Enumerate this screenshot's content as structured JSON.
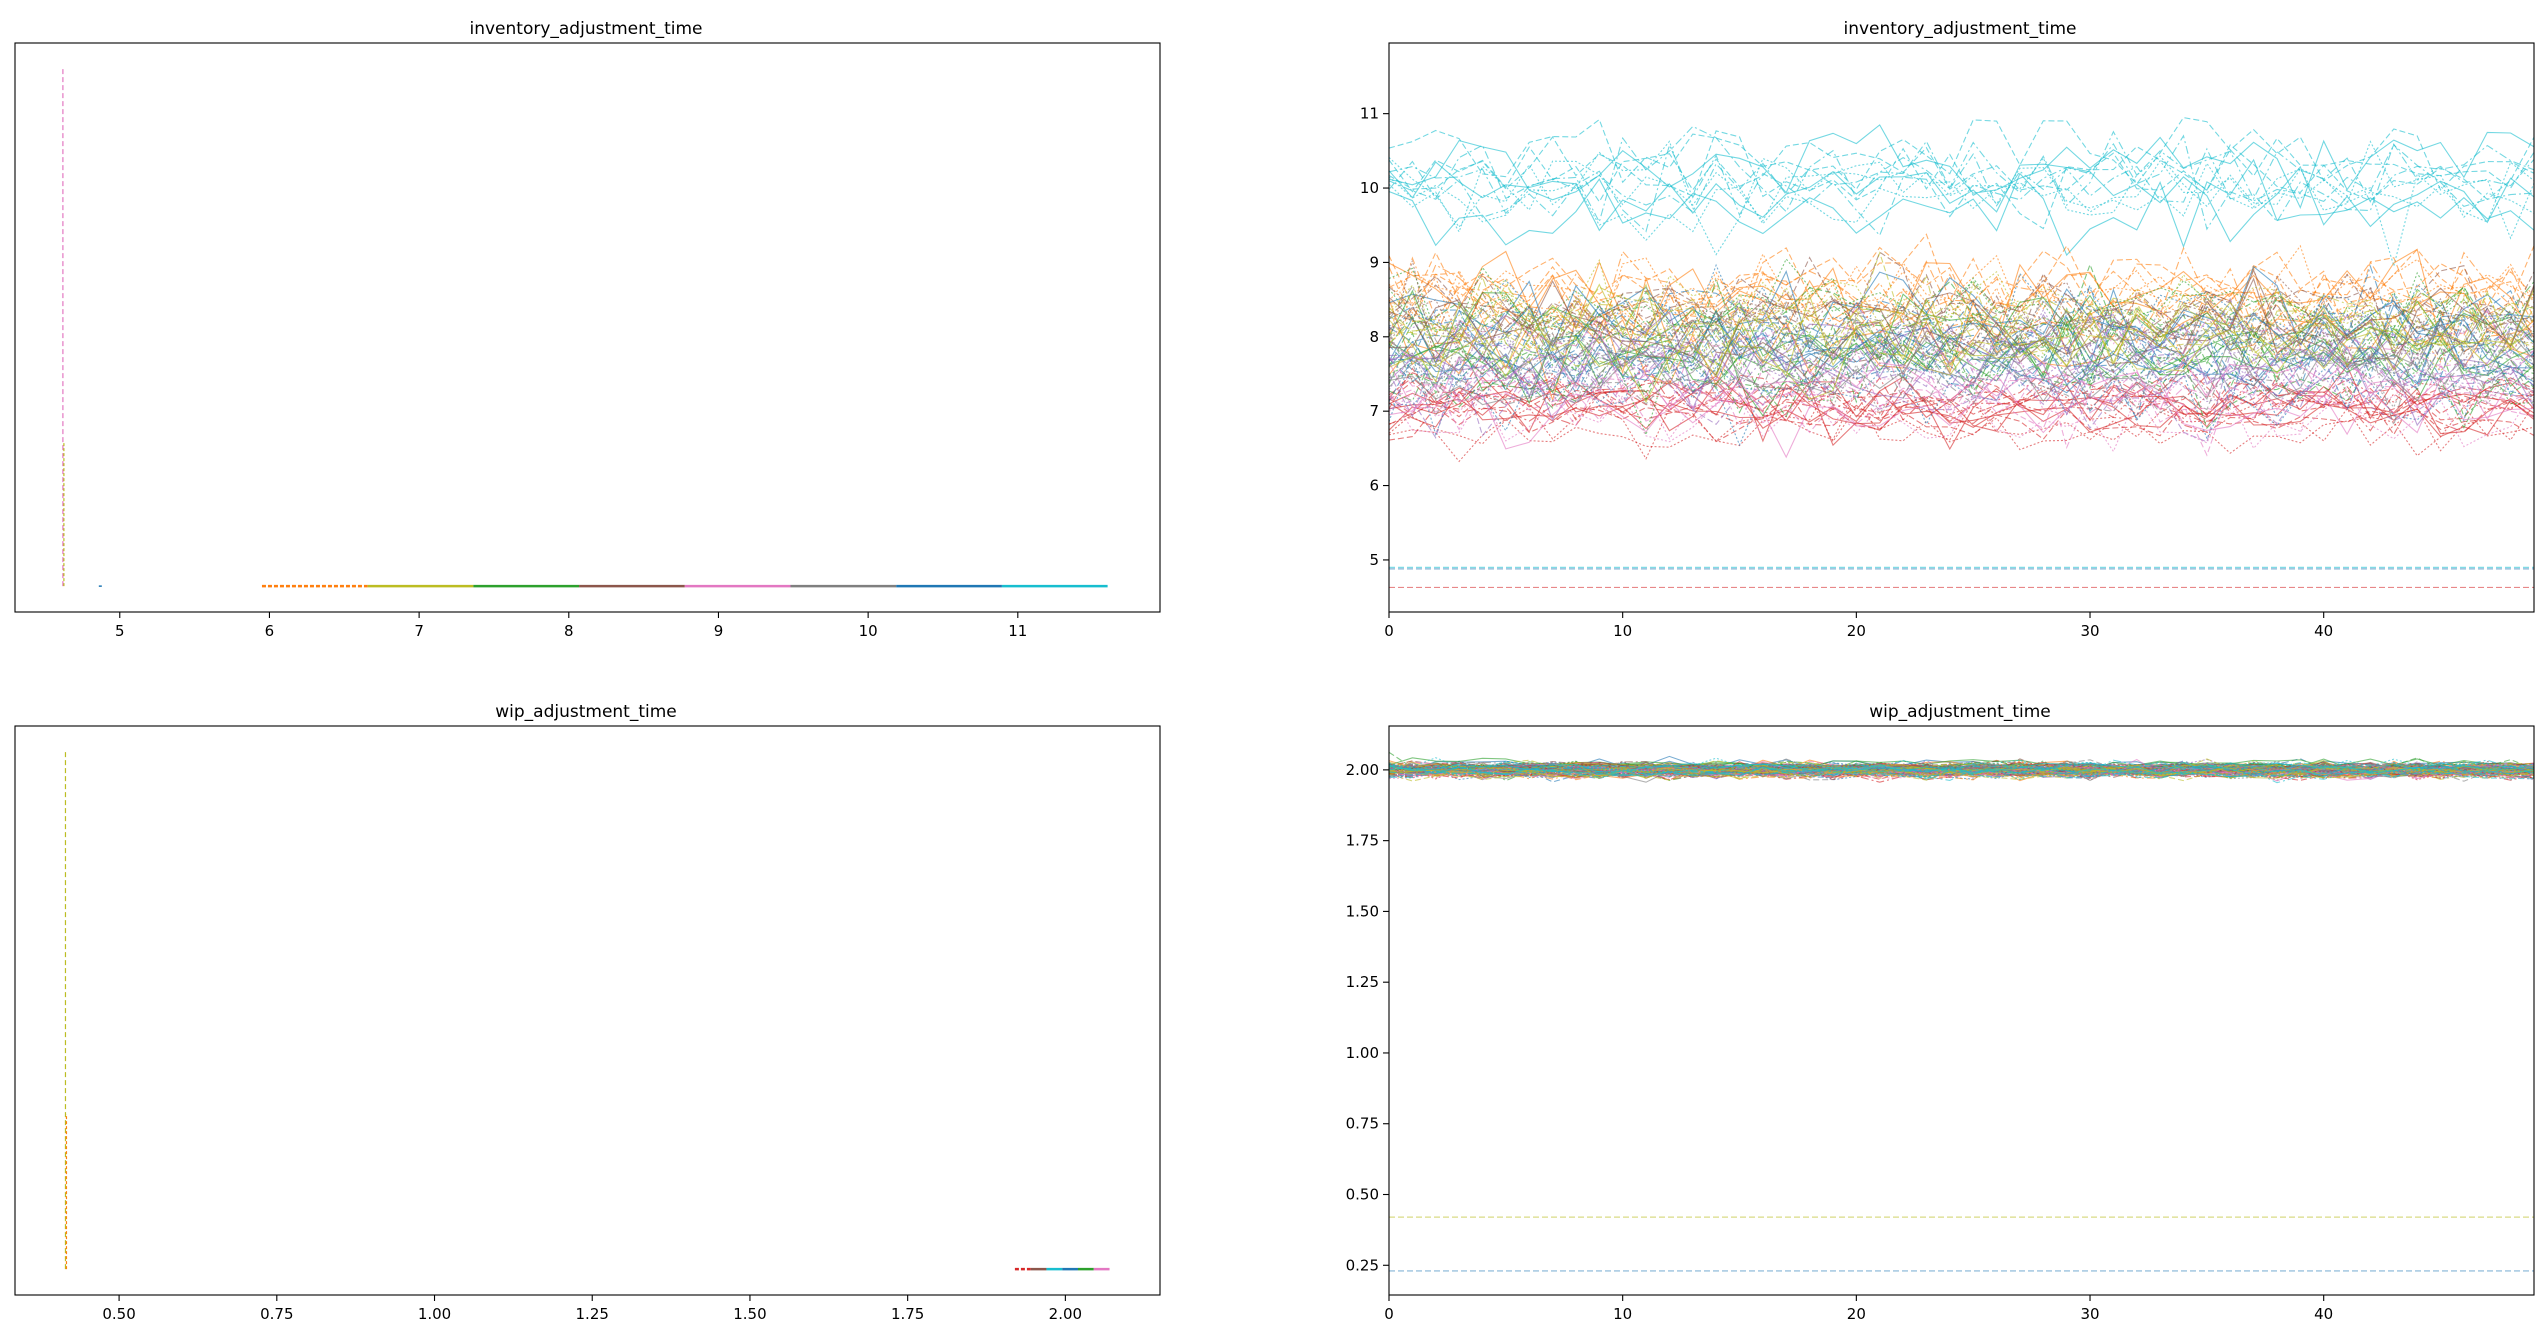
{
  "figure": {
    "palette": [
      "#1f77b4",
      "#ff7f0e",
      "#2ca02c",
      "#d62728",
      "#9467bd",
      "#8c564b",
      "#e377c2",
      "#7f7f7f",
      "#bcbd22",
      "#17becf"
    ]
  },
  "chart_data": [
    {
      "type": "line",
      "kind": "density",
      "title": "inventory_adjustment_time",
      "xlabel": "",
      "ylabel": "",
      "xlim": [
        4.3,
        11.95
      ],
      "xticks": [
        5,
        6,
        7,
        8,
        9,
        10,
        11
      ],
      "ylim": [
        -0.05,
        1.05
      ],
      "yticks": [],
      "spike": {
        "x": 4.62,
        "height": 1.0,
        "color": "#e377c2",
        "inner_height": 0.28,
        "inner_color": "#bcbd22"
      },
      "baseline": {
        "x_start": 5.95,
        "x_end": 11.6,
        "y": 0.0,
        "colors": [
          "#ff7f0e",
          "#bcbd22",
          "#2ca02c",
          "#8c564b",
          "#e377c2",
          "#7f7f7f",
          "#1f77b4",
          "#17becf"
        ]
      },
      "stray_points": [
        {
          "x": 4.87,
          "y": 0.0
        }
      ]
    },
    {
      "type": "line",
      "kind": "trace",
      "title": "inventory_adjustment_time",
      "xlabel": "",
      "ylabel": "",
      "xlim": [
        0,
        49
      ],
      "xticks": [
        0,
        10,
        20,
        30,
        40
      ],
      "ylim": [
        4.3,
        11.95
      ],
      "yticks": [
        5,
        6,
        7,
        8,
        9,
        10,
        11
      ],
      "n_draws": 50,
      "bands": [
        {
          "color": "#17becf",
          "count": 12,
          "mean": 10.05,
          "sd": 0.38
        },
        {
          "color": "#d62728",
          "count": 14,
          "mean": 7.0,
          "sd": 0.25
        },
        {
          "color": "#ff7f0e",
          "count": 12,
          "mean": 8.4,
          "sd": 0.42
        },
        {
          "color": "#2ca02c",
          "count": 12,
          "mean": 8.0,
          "sd": 0.38
        },
        {
          "color": "#1f77b4",
          "count": 12,
          "mean": 7.9,
          "sd": 0.4
        },
        {
          "color": "#9467bd",
          "count": 8,
          "mean": 7.7,
          "sd": 0.4
        },
        {
          "color": "#8c564b",
          "count": 8,
          "mean": 8.2,
          "sd": 0.4
        },
        {
          "color": "#e377c2",
          "count": 8,
          "mean": 7.4,
          "sd": 0.35
        },
        {
          "color": "#bcbd22",
          "count": 8,
          "mean": 8.1,
          "sd": 0.4
        },
        {
          "color": "#7f7f7f",
          "count": 6,
          "mean": 7.8,
          "sd": 0.4
        }
      ],
      "flat_lines": [
        {
          "y": 4.88,
          "color": "#1f77b4"
        },
        {
          "y": 4.9,
          "color": "#17becf"
        },
        {
          "y": 4.63,
          "color": "#d62728"
        }
      ]
    },
    {
      "type": "line",
      "kind": "density",
      "title": "wip_adjustment_time",
      "xlabel": "",
      "ylabel": "",
      "xlim": [
        0.335,
        2.15
      ],
      "xticks": [
        0.5,
        0.75,
        1.0,
        1.25,
        1.5,
        1.75,
        2.0
      ],
      "ylim": [
        -0.05,
        1.05
      ],
      "yticks": [],
      "spike": {
        "x": 0.415,
        "height": 1.0,
        "color": "#bcbd22",
        "inner_height": 0.3,
        "inner_color": "#ff7f0e"
      },
      "baseline": {
        "x_start": 1.92,
        "x_end": 2.07,
        "y": 0.0,
        "colors": [
          "#d62728",
          "#8c564b",
          "#17becf",
          "#1f77b4",
          "#2ca02c",
          "#e377c2"
        ]
      },
      "stray_points": []
    },
    {
      "type": "line",
      "kind": "trace",
      "title": "wip_adjustment_time",
      "xlabel": "",
      "ylabel": "",
      "xlim": [
        0,
        49
      ],
      "xticks": [
        0,
        10,
        20,
        30,
        40
      ],
      "ylim": [
        0.145,
        2.155
      ],
      "yticks": [
        0.25,
        0.5,
        0.75,
        1.0,
        1.25,
        1.5,
        1.75,
        2.0
      ],
      "n_draws": 50,
      "bands": [
        {
          "color": "#1f77b4",
          "count": 12,
          "mean": 2.0,
          "sd": 0.015
        },
        {
          "color": "#ff7f0e",
          "count": 12,
          "mean": 2.0,
          "sd": 0.015
        },
        {
          "color": "#2ca02c",
          "count": 12,
          "mean": 2.0,
          "sd": 0.015
        },
        {
          "color": "#d62728",
          "count": 12,
          "mean": 2.0,
          "sd": 0.015
        },
        {
          "color": "#9467bd",
          "count": 10,
          "mean": 2.0,
          "sd": 0.015
        },
        {
          "color": "#8c564b",
          "count": 10,
          "mean": 2.0,
          "sd": 0.015
        },
        {
          "color": "#e377c2",
          "count": 10,
          "mean": 2.0,
          "sd": 0.015
        },
        {
          "color": "#7f7f7f",
          "count": 10,
          "mean": 2.0,
          "sd": 0.015
        },
        {
          "color": "#bcbd22",
          "count": 10,
          "mean": 2.0,
          "sd": 0.015
        },
        {
          "color": "#17becf",
          "count": 10,
          "mean": 2.0,
          "sd": 0.015
        }
      ],
      "flat_lines": [
        {
          "y": 0.42,
          "color": "#bcbd22"
        },
        {
          "y": 0.23,
          "color": "#1f77b4"
        }
      ]
    }
  ]
}
